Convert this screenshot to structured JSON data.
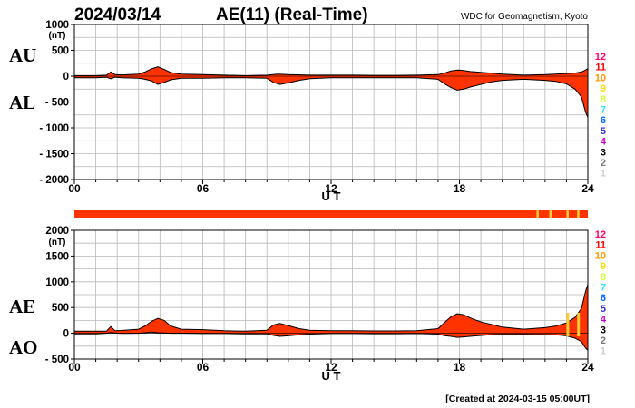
{
  "header": {
    "date": "2024/03/14",
    "title": "AE(11) (Real-Time)",
    "credit": "WDC for Geomagnetism, Kyoto"
  },
  "footer": {
    "created": "[Created at 2024-03-15 05:00UT]"
  },
  "colors": {
    "fill": "#ff3300",
    "curve": "#000000",
    "grid": "#b8b8b8",
    "qual_bar": "#ff3300",
    "qual_accent": "#ffcc33"
  },
  "legend": [
    {
      "label": "12",
      "color": "#ff0066"
    },
    {
      "label": "11",
      "color": "#ff0000"
    },
    {
      "label": "10",
      "color": "#ff9900"
    },
    {
      "label": "9",
      "color": "#ffdd00"
    },
    {
      "label": "8",
      "color": "#ccff33"
    },
    {
      "label": "7",
      "color": "#33ddff"
    },
    {
      "label": "6",
      "color": "#0066ff"
    },
    {
      "label": "5",
      "color": "#3333cc"
    },
    {
      "label": "4",
      "color": "#cc00cc"
    },
    {
      "label": "3",
      "color": "#000000"
    },
    {
      "label": "2",
      "color": "#777777"
    },
    {
      "label": "1",
      "color": "#cccccc"
    }
  ],
  "quality_bar": {
    "accent_hours": [
      21.6,
      22.2,
      23.0,
      23.5
    ]
  },
  "chart_data": [
    {
      "type": "area",
      "panel": "AU/AL",
      "side_label_top": "AU",
      "side_label_bottom": "AL",
      "unit": "(nT)",
      "xlabel": "U T",
      "xlim": [
        0,
        24
      ],
      "ylim": [
        -2000,
        1000
      ],
      "yticks": [
        1000,
        500,
        0,
        -500,
        -1000,
        -1500,
        -2000
      ],
      "ytick_labels": [
        "1000",
        "500",
        "0",
        "- 500",
        "- 1000",
        "- 1500",
        "- 2000"
      ],
      "xticks": [
        0,
        6,
        12,
        18,
        24
      ],
      "xtick_labels": [
        "00",
        "06",
        "12",
        "18",
        "24"
      ],
      "grid": true,
      "series": [
        {
          "name": "AU",
          "x": [
            0,
            1,
            1.5,
            1.7,
            1.9,
            2.2,
            3,
            3.3,
            3.6,
            3.9,
            4.2,
            4.5,
            5,
            6,
            7,
            8,
            9,
            9.5,
            10,
            11,
            12,
            13,
            14,
            15,
            16,
            17,
            17.3,
            17.6,
            17.9,
            18.2,
            18.5,
            18.8,
            19.1,
            19.5,
            20,
            21,
            22,
            22.5,
            23,
            23.4,
            23.7,
            23.9,
            24
          ],
          "y": [
            10,
            10,
            20,
            80,
            30,
            25,
            40,
            80,
            140,
            180,
            130,
            70,
            40,
            30,
            20,
            10,
            20,
            40,
            30,
            20,
            20,
            20,
            15,
            15,
            20,
            30,
            60,
            100,
            120,
            110,
            90,
            80,
            70,
            60,
            40,
            20,
            30,
            40,
            50,
            60,
            80,
            120,
            150
          ]
        },
        {
          "name": "AL",
          "x": [
            0,
            1,
            1.5,
            1.7,
            1.9,
            2.2,
            3,
            3.3,
            3.6,
            3.9,
            4.2,
            4.5,
            5,
            6,
            7,
            8,
            9,
            9.3,
            9.6,
            10,
            10.5,
            11,
            12,
            13,
            14,
            15,
            16,
            17,
            17.3,
            17.6,
            17.9,
            18.2,
            18.5,
            18.8,
            19.1,
            19.5,
            20,
            21,
            22,
            22.5,
            23,
            23.4,
            23.7,
            23.9,
            24
          ],
          "y": [
            -30,
            -30,
            -20,
            -50,
            -20,
            -30,
            -40,
            -60,
            -90,
            -160,
            -120,
            -70,
            -40,
            -40,
            -30,
            -30,
            -40,
            -120,
            -160,
            -130,
            -80,
            -50,
            -30,
            -30,
            -30,
            -30,
            -30,
            -60,
            -150,
            -220,
            -270,
            -250,
            -210,
            -180,
            -150,
            -110,
            -80,
            -60,
            -80,
            -100,
            -150,
            -250,
            -400,
            -700,
            -800
          ]
        }
      ]
    },
    {
      "type": "area",
      "panel": "AE/AO",
      "side_label_top": "AE",
      "side_label_bottom": "AO",
      "unit": "(nT)",
      "xlabel": "U T",
      "xlim": [
        0,
        24
      ],
      "ylim": [
        -500,
        2000
      ],
      "yticks": [
        2000,
        1500,
        1000,
        500,
        0,
        -500
      ],
      "ytick_labels": [
        "2000",
        "1500",
        "1000",
        "500",
        "0",
        "- 500"
      ],
      "xticks": [
        0,
        6,
        12,
        18,
        24
      ],
      "xtick_labels": [
        "00",
        "06",
        "12",
        "18",
        "24"
      ],
      "grid": true,
      "series": [
        {
          "name": "AE",
          "x": [
            0,
            1,
            1.5,
            1.7,
            1.9,
            2.2,
            3,
            3.3,
            3.6,
            3.9,
            4.2,
            4.5,
            5,
            6,
            7,
            8,
            9,
            9.3,
            9.6,
            10,
            10.5,
            11,
            12,
            13,
            14,
            15,
            16,
            17,
            17.3,
            17.6,
            17.9,
            18.2,
            18.5,
            18.8,
            19.1,
            19.5,
            20,
            21,
            22,
            22.5,
            23,
            23.4,
            23.7,
            23.9,
            24
          ],
          "y": [
            40,
            40,
            40,
            130,
            50,
            55,
            80,
            140,
            230,
            290,
            250,
            140,
            80,
            70,
            50,
            40,
            60,
            160,
            190,
            150,
            90,
            60,
            50,
            50,
            45,
            45,
            50,
            90,
            210,
            320,
            380,
            360,
            300,
            250,
            210,
            170,
            120,
            80,
            110,
            140,
            200,
            310,
            480,
            820,
            950
          ]
        },
        {
          "name": "AO",
          "x": [
            0,
            1,
            1.5,
            1.7,
            1.9,
            2.2,
            3,
            3.3,
            3.6,
            3.9,
            4.2,
            4.5,
            5,
            6,
            7,
            8,
            9,
            9.3,
            9.6,
            10,
            10.5,
            11,
            12,
            13,
            14,
            15,
            16,
            17,
            17.3,
            17.6,
            17.9,
            18.2,
            18.5,
            18.8,
            19.1,
            19.5,
            20,
            21,
            22,
            22.5,
            23,
            23.4,
            23.7,
            23.9,
            24
          ],
          "y": [
            -10,
            -10,
            0,
            15,
            5,
            -3,
            0,
            10,
            25,
            10,
            5,
            0,
            0,
            -5,
            -5,
            -10,
            -10,
            -40,
            -60,
            -50,
            -30,
            -15,
            -5,
            -5,
            -8,
            -8,
            -5,
            -15,
            -45,
            -60,
            -80,
            -70,
            -60,
            -50,
            -40,
            -25,
            -20,
            -20,
            -25,
            -30,
            -50,
            -95,
            -160,
            -290,
            -330
          ]
        }
      ]
    }
  ]
}
